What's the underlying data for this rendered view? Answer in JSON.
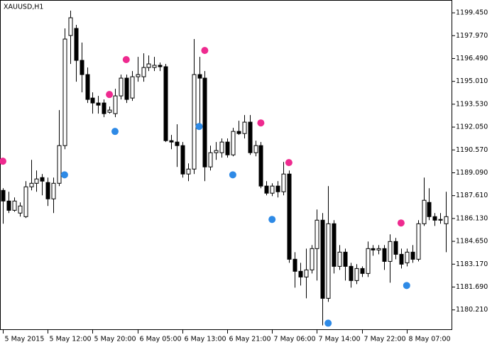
{
  "chart_data": {
    "type": "candlestick",
    "title": "XAUUSD,H1",
    "categories": [
      "5 May 2015",
      null,
      null,
      null,
      null,
      null,
      null,
      null,
      "5 May 12:00",
      null,
      null,
      null,
      null,
      null,
      null,
      null,
      "5 May 20:00",
      null,
      null,
      null,
      null,
      null,
      null,
      null,
      "6 May 05:00",
      null,
      null,
      null,
      null,
      null,
      null,
      null,
      "6 May 13:00",
      null,
      null,
      null,
      null,
      null,
      null,
      null,
      "6 May 21:00",
      null,
      null,
      null,
      null,
      null,
      null,
      null,
      "7 May 06:00",
      null,
      null,
      null,
      null,
      null,
      null,
      null,
      "7 May 14:00",
      null,
      null,
      null,
      null,
      null,
      null,
      null,
      "7 May 22:00",
      null,
      null,
      null,
      null,
      null,
      null,
      null,
      "8 May 07:00",
      null,
      null,
      null,
      null,
      null,
      null,
      null
    ],
    "open": [
      1187.95,
      1187.26,
      1186.66,
      1186.48,
      1186.25,
      1188.18,
      1188.41,
      1188.78,
      1188.46,
      1187.4,
      1188.41,
      1190.85,
      1197.98,
      1198.44,
      1196.37,
      1195.45,
      1193.93,
      1193.61,
      1193.61,
      1193.01,
      1192.92,
      1194.07,
      1195.22,
      1193.93,
      1195.31,
      1195.31,
      1195.91,
      1195.91,
      1196.05,
      1195.96,
      1191.17,
      1191.08,
      1190.85,
      1189.01,
      1189.33,
      1195.45,
      1195.22,
      1189.47,
      1190.39,
      1190.39,
      1191.08,
      1190.25,
      1191.77,
      1191.63,
      1192.37,
      1190.39,
      1190.85,
      1188.23,
      1187.77,
      1188.23,
      1187.86,
      1189.01,
      1183.49,
      1182.71,
      1182.34,
      1182.8,
      1184.18,
      1186.02,
      1180.96,
      1185.79,
      1183.03,
      1183.95,
      1183.03,
      1182.11,
      1182.89,
      1182.57,
      1184.18,
      1184.09,
      1184.18,
      1183.35,
      1184.64,
      1183.81,
      1183.26,
      1183.95,
      1183.49,
      1185.79,
      1187.17,
      1186.25,
      1186.02,
      1185.79
    ],
    "high": [
      1188.09,
      1187.86,
      1187.49,
      1187.17,
      1188.55,
      1189.93,
      1189.24,
      1189.01,
      1188.78,
      1188.78,
      1193.15,
      1198.44,
      1199.59,
      1198.67,
      1197.52,
      1195.91,
      1194.3,
      1194.07,
      1193.84,
      1193.38,
      1194.53,
      1195.45,
      1195.45,
      1195.68,
      1196.6,
      1196.83,
      1196.69,
      1196.6,
      1196.23,
      1196.14,
      1191.54,
      1192.23,
      1191.08,
      1189.7,
      1197.75,
      1196.6,
      1195.68,
      1190.85,
      1191.08,
      1191.31,
      1191.31,
      1192.0,
      1192.46,
      1192.83,
      1192.83,
      1191.17,
      1191.08,
      1188.55,
      1188.41,
      1188.55,
      1189.79,
      1189.24,
      1183.95,
      1183.26,
      1184.18,
      1184.41,
      1186.71,
      1186.48,
      1188.23,
      1186.02,
      1184.41,
      1184.18,
      1183.26,
      1183.17,
      1183.03,
      1184.64,
      1184.41,
      1184.41,
      1184.41,
      1185.1,
      1184.87,
      1184.18,
      1184.18,
      1184.41,
      1186.02,
      1188.78,
      1188.09,
      1186.48,
      1186.48,
      1187.86
    ],
    "low": [
      1185.79,
      1186.48,
      1186.57,
      1186.25,
      1186.16,
      1187.95,
      1187.86,
      1187.63,
      1186.94,
      1186.48,
      1188.23,
      1190.62,
      1196.14,
      1194.99,
      1194.3,
      1193.61,
      1192.92,
      1192.92,
      1192.69,
      1192.92,
      1192.69,
      1193.84,
      1193.61,
      1193.75,
      1194.99,
      1194.99,
      1195.68,
      1195.68,
      1195.68,
      1191.08,
      1190.62,
      1189.47,
      1188.78,
      1188.55,
      1189.01,
      1192.09,
      1188.55,
      1189.24,
      1189.93,
      1190.07,
      1190.07,
      1190.16,
      1191.54,
      1191.31,
      1190.25,
      1190.16,
      1188.09,
      1187.63,
      1187.58,
      1187.49,
      1187.63,
      1183.26,
      1181.65,
      1181.79,
      1180.96,
      1182.57,
      1182.11,
      1179.21,
      1180.73,
      1182.57,
      1182.8,
      1182.11,
      1181.65,
      1181.88,
      1182.34,
      1182.34,
      1183.72,
      1183.81,
      1182.8,
      1181.97,
      1183.49,
      1182.89,
      1183.03,
      1183.26,
      1183.35,
      1185.65,
      1186.02,
      1185.65,
      1185.79,
      1183.95
    ],
    "close": [
      1187.26,
      1186.66,
      1187.26,
      1186.94,
      1188.18,
      1188.41,
      1188.69,
      1188.55,
      1187.4,
      1188.41,
      1190.85,
      1197.75,
      1199.13,
      1196.37,
      1195.45,
      1193.84,
      1193.61,
      1193.47,
      1192.92,
      1193.15,
      1194.07,
      1195.22,
      1193.84,
      1195.31,
      1195.45,
      1195.91,
      1196.14,
      1196.05,
      1195.96,
      1191.17,
      1191.08,
      1190.85,
      1189.01,
      1189.33,
      1195.45,
      1195.22,
      1189.47,
      1190.39,
      1190.53,
      1191.08,
      1190.25,
      1191.77,
      1191.63,
      1192.37,
      1190.39,
      1190.85,
      1188.23,
      1187.77,
      1188.23,
      1187.86,
      1189.01,
      1183.49,
      1182.71,
      1182.34,
      1182.8,
      1184.18,
      1186.02,
      1180.96,
      1185.79,
      1183.03,
      1183.95,
      1183.03,
      1182.11,
      1182.89,
      1182.57,
      1184.18,
      1184.09,
      1184.18,
      1183.35,
      1184.64,
      1183.81,
      1183.17,
      1183.95,
      1183.49,
      1185.79,
      1187.31,
      1186.25,
      1186.02,
      1186.07,
      1186.25
    ],
    "series": [
      {
        "color": "#ee2a8f",
        "values": [
          1189.84,
          null,
          null,
          null,
          null,
          null,
          null,
          null,
          null,
          null,
          null,
          null,
          null,
          null,
          null,
          null,
          null,
          null,
          null,
          1194.16,
          null,
          null,
          1196.42,
          null,
          null,
          null,
          null,
          null,
          null,
          null,
          null,
          null,
          null,
          null,
          null,
          null,
          1197.01,
          null,
          null,
          null,
          null,
          null,
          null,
          null,
          null,
          null,
          1192.32,
          null,
          null,
          null,
          null,
          1189.75,
          null,
          null,
          null,
          null,
          null,
          null,
          null,
          null,
          null,
          null,
          null,
          null,
          null,
          null,
          null,
          null,
          null,
          null,
          null,
          1185.84,
          null,
          null,
          null,
          null,
          null,
          null,
          null,
          null
        ]
      },
      {
        "color": "#2e8ae6",
        "values": [
          null,
          null,
          null,
          null,
          null,
          null,
          null,
          null,
          null,
          null,
          null,
          1188.96,
          null,
          null,
          null,
          null,
          null,
          null,
          null,
          null,
          1191.77,
          null,
          null,
          null,
          null,
          null,
          null,
          null,
          null,
          null,
          null,
          null,
          null,
          null,
          null,
          1192.09,
          null,
          null,
          null,
          null,
          null,
          1188.96,
          null,
          null,
          null,
          null,
          null,
          null,
          1186.07,
          null,
          null,
          null,
          null,
          null,
          null,
          null,
          null,
          null,
          1179.35,
          null,
          null,
          null,
          null,
          null,
          null,
          null,
          null,
          null,
          null,
          null,
          null,
          null,
          1181.79,
          null,
          null,
          null,
          null,
          null,
          null,
          null
        ]
      }
    ],
    "ylim": [
      1178.91,
      1200.05
    ],
    "yticks": [
      {
        "value": 1199.45,
        "label": "1199.450"
      },
      {
        "value": 1197.97,
        "label": "1197.970"
      },
      {
        "value": 1196.49,
        "label": "1196.490"
      },
      {
        "value": 1195.01,
        "label": "1195.010"
      },
      {
        "value": 1193.53,
        "label": "1193.530"
      },
      {
        "value": 1192.05,
        "label": "1192.050"
      },
      {
        "value": 1190.57,
        "label": "1190.570"
      },
      {
        "value": 1189.09,
        "label": "1189.090"
      },
      {
        "value": 1187.61,
        "label": "1187.610"
      },
      {
        "value": 1186.13,
        "label": "1186.130"
      },
      {
        "value": 1184.65,
        "label": "1184.650"
      },
      {
        "value": 1183.17,
        "label": "1183.170"
      },
      {
        "value": 1181.69,
        "label": "1181.690"
      },
      {
        "value": 1180.21,
        "label": "1180.210"
      }
    ],
    "up_color": "#ffffff",
    "down_color": "#000000"
  }
}
